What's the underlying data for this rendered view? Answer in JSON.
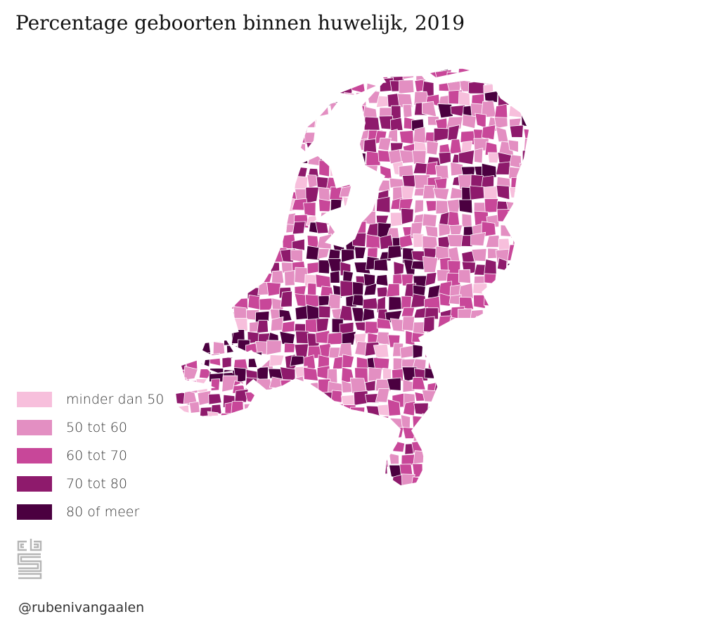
{
  "title": "Percentage geboorten binnen huwelijk, 2019",
  "legend": [
    {
      "label": "minder dan 50",
      "color": "#f7bfdc"
    },
    {
      "label": "50 tot 60",
      "color": "#e38fc2"
    },
    {
      "label": "60 tot 70",
      "color": "#c84799"
    },
    {
      "label": "70 tot 80",
      "color": "#8e1a6c"
    },
    {
      "label": "80 of meer",
      "color": "#4b0040"
    }
  ],
  "logo": {
    "icon": "cbs-logo"
  },
  "credit": "@rubenivangaalen"
}
